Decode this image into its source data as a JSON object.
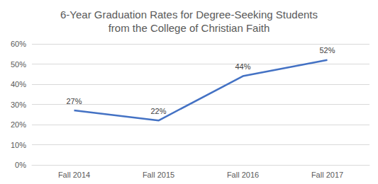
{
  "chart_data": {
    "type": "line",
    "title": "6-Year Graduation Rates for Degree-Seeking Students\nfrom the College of Christian Faith",
    "categories": [
      "Fall 2014",
      "Fall 2015",
      "Fall 2016",
      "Fall 2017"
    ],
    "values": [
      27,
      22,
      44,
      52
    ],
    "value_labels": [
      "27%",
      "22%",
      "44%",
      "52%"
    ],
    "color": "#4472c4",
    "ylim": [
      0,
      60
    ],
    "yticks": [
      {
        "value": 0,
        "label": "0%"
      },
      {
        "value": 10,
        "label": "10%"
      },
      {
        "value": 20,
        "label": "20%"
      },
      {
        "value": 30,
        "label": "30%"
      },
      {
        "value": 40,
        "label": "40%"
      },
      {
        "value": 50,
        "label": "50%"
      },
      {
        "value": 60,
        "label": "60%"
      }
    ],
    "grid": true,
    "data_labels": true
  }
}
